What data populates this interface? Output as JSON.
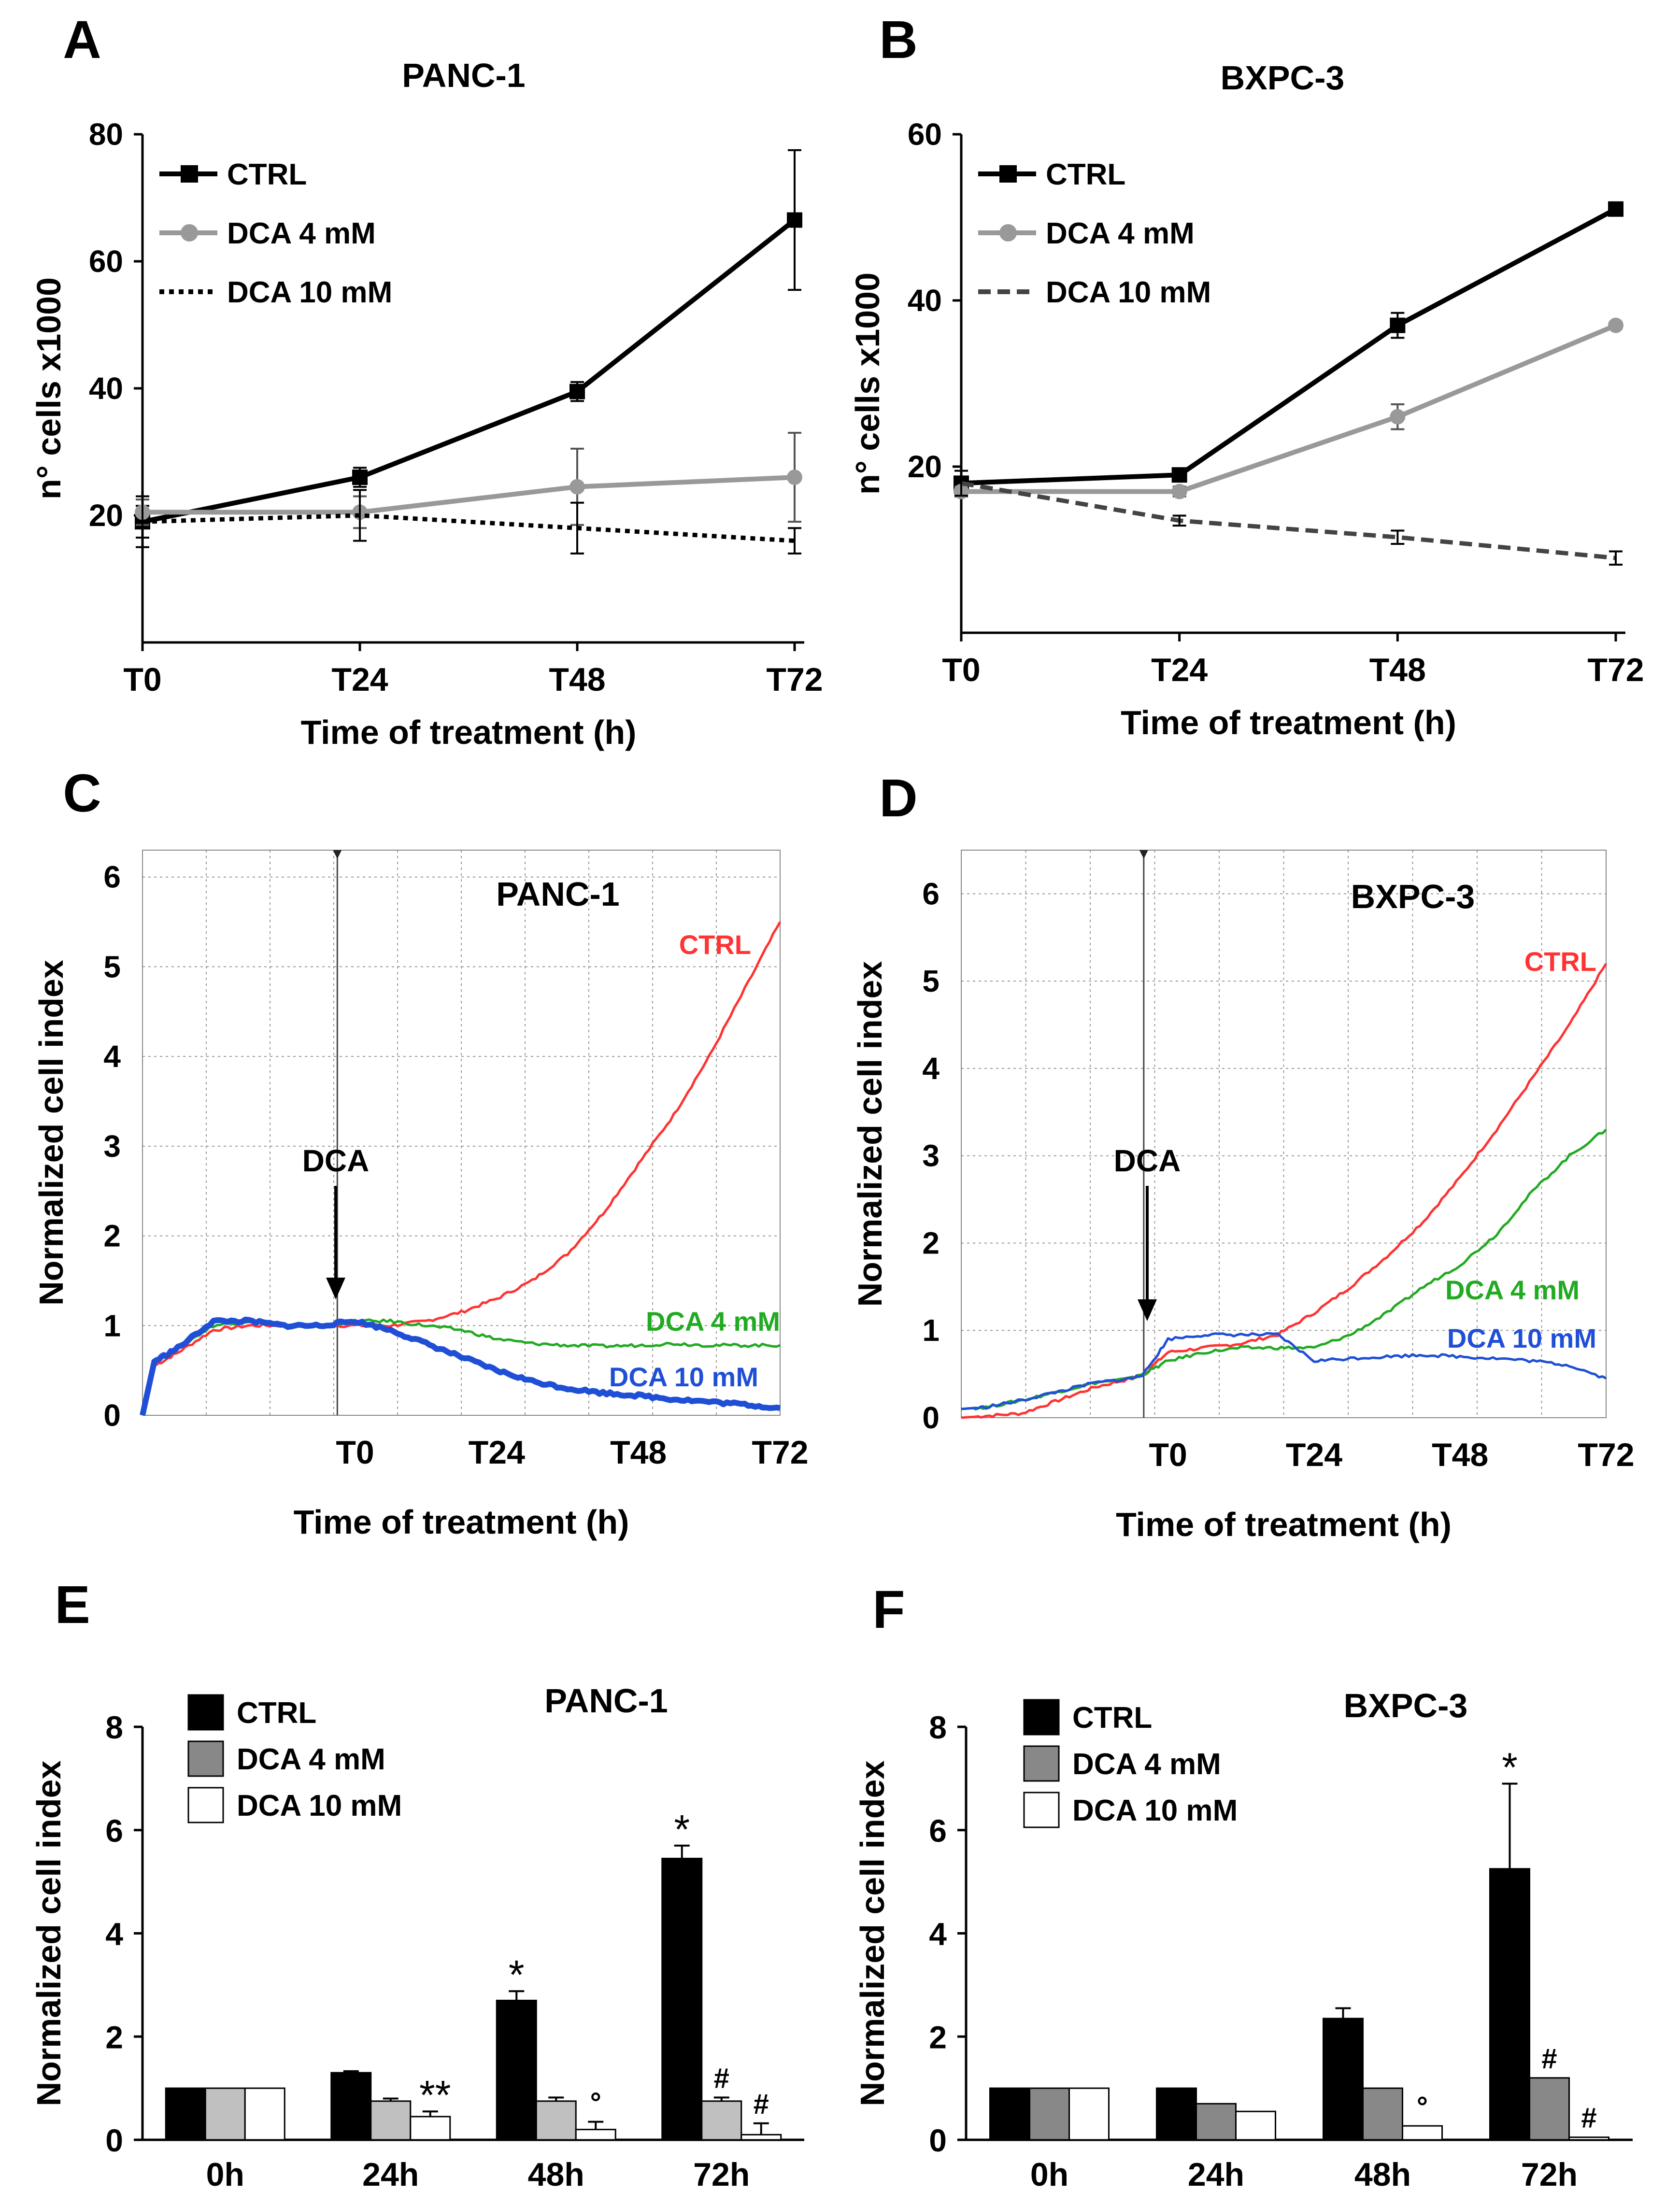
{
  "chart_data": [
    {
      "panel": "A",
      "type": "line",
      "title": "PANC-1",
      "xlabel": "Time of treatment (h)",
      "ylabel": "n° cells x1000",
      "categories": [
        "T0",
        "T24",
        "T48",
        "T72"
      ],
      "ylim": [
        0,
        80
      ],
      "yticks": [
        20,
        40,
        60,
        80
      ],
      "series": [
        {
          "name": "CTRL",
          "values": [
            19,
            26,
            39.5,
            66.5
          ],
          "errors": [
            2.5,
            1.5,
            1.5,
            11
          ],
          "color": "#000000",
          "style": "solid",
          "marker": "square"
        },
        {
          "name": "DCA 4 mM",
          "values": [
            20.5,
            20.5,
            24.5,
            26
          ],
          "errors": [
            2,
            2.5,
            6,
            7
          ],
          "color": "#999999",
          "style": "solid",
          "marker": "circle"
        },
        {
          "name": "DCA 10 mM",
          "values": [
            19,
            20,
            18,
            16
          ],
          "errors": [
            4,
            4,
            4,
            2
          ],
          "color": "#000000",
          "style": "dotted",
          "marker": "none"
        }
      ]
    },
    {
      "panel": "B",
      "type": "line",
      "title": "BXPC-3",
      "xlabel": "Time of treatment (h)",
      "ylabel": "n° cells x1000",
      "categories": [
        "T0",
        "T24",
        "T48",
        "T72"
      ],
      "ylim": [
        0,
        60
      ],
      "yticks": [
        20,
        40,
        60
      ],
      "series": [
        {
          "name": "CTRL",
          "values": [
            18,
            19,
            37,
            51
          ],
          "errors": [
            0.6,
            0.6,
            1.5,
            0.4
          ],
          "color": "#000000",
          "style": "solid",
          "marker": "square"
        },
        {
          "name": "DCA 4 mM",
          "values": [
            17,
            17,
            26,
            37
          ],
          "errors": [
            0.6,
            0.6,
            1.5,
            0.4
          ],
          "color": "#999999",
          "style": "solid",
          "marker": "circle"
        },
        {
          "name": "DCA 10 mM",
          "values": [
            18,
            13.5,
            11.5,
            9
          ],
          "errors": [
            1.5,
            0.6,
            0.8,
            0.8
          ],
          "color": "#444444",
          "style": "dashed",
          "marker": "none"
        }
      ]
    },
    {
      "panel": "C",
      "type": "line",
      "title": "PANC-1",
      "xlabel": "Time of treatment (h)",
      "ylabel": "Normalized cell index",
      "x_ticks": [
        {
          "label": "T0",
          "x": 0
        },
        {
          "label": "T24",
          "x": 24
        },
        {
          "label": "T48",
          "x": 48
        },
        {
          "label": "T72",
          "x": 72
        }
      ],
      "xlim": [
        -36,
        72
      ],
      "ylim": [
        0,
        6.3
      ],
      "yticks": [
        0,
        1,
        2,
        3,
        4,
        5,
        6
      ],
      "treatment_x": -3,
      "annotation": "DCA",
      "series": [
        {
          "name": "CTRL",
          "color": "#ff3333",
          "x": [
            -36,
            -34,
            -30,
            -24,
            -18,
            -12,
            -6,
            0,
            6,
            12,
            18,
            24,
            30,
            36,
            42,
            48,
            54,
            60,
            66,
            72
          ],
          "y": [
            0,
            0.55,
            0.7,
            0.95,
            1.0,
            1.0,
            1.0,
            1.0,
            1.0,
            1.05,
            1.15,
            1.3,
            1.5,
            1.8,
            2.25,
            2.8,
            3.35,
            4.0,
            4.75,
            5.5
          ]
        },
        {
          "name": "DCA 4 mM",
          "color": "#22aa22",
          "x": [
            -36,
            -34,
            -30,
            -24,
            -18,
            -12,
            -6,
            0,
            6,
            12,
            18,
            24,
            30,
            36,
            42,
            48,
            54,
            60,
            66,
            72
          ],
          "y": [
            0,
            0.6,
            0.75,
            1.0,
            1.05,
            1.0,
            1.0,
            1.05,
            1.05,
            1.0,
            0.95,
            0.85,
            0.8,
            0.78,
            0.77,
            0.78,
            0.8,
            0.78,
            0.78,
            0.78
          ]
        },
        {
          "name": "DCA 10 mM",
          "color": "#1f4fd6",
          "x": [
            -36,
            -34,
            -30,
            -24,
            -18,
            -12,
            -6,
            0,
            6,
            12,
            18,
            24,
            30,
            36,
            42,
            48,
            54,
            60,
            66,
            72
          ],
          "y": [
            0,
            0.6,
            0.75,
            1.05,
            1.05,
            1.0,
            1.0,
            1.05,
            0.95,
            0.8,
            0.65,
            0.5,
            0.38,
            0.3,
            0.25,
            0.22,
            0.18,
            0.15,
            0.12,
            0.08
          ]
        }
      ],
      "labels": [
        {
          "text": "CTRL",
          "color": "#ff3333",
          "series": "CTRL"
        },
        {
          "text": "DCA 4 mM",
          "color": "#22aa22",
          "series": "DCA 4 mM"
        },
        {
          "text": "DCA 10 mM",
          "color": "#1f4fd6",
          "series": "DCA 10 mM"
        }
      ]
    },
    {
      "panel": "D",
      "type": "line",
      "title": "BXPC-3",
      "xlabel": "Time of treatment (h)",
      "ylabel": "Normalized cell index",
      "x_ticks": [
        {
          "label": "T0",
          "x": 0
        },
        {
          "label": "T24",
          "x": 24
        },
        {
          "label": "T48",
          "x": 48
        },
        {
          "label": "T72",
          "x": 72
        }
      ],
      "xlim": [
        -34,
        72
      ],
      "ylim": [
        0,
        6.5
      ],
      "yticks": [
        0,
        1,
        2,
        3,
        4,
        5,
        6
      ],
      "treatment_x": -4,
      "annotation": "DCA",
      "series": [
        {
          "name": "CTRL",
          "color": "#ff3333",
          "x": [
            -34,
            -30,
            -24,
            -18,
            -12,
            -6,
            -4,
            0,
            6,
            12,
            18,
            24,
            30,
            36,
            42,
            48,
            54,
            60,
            66,
            72
          ],
          "y": [
            0,
            0.02,
            0.05,
            0.2,
            0.35,
            0.45,
            0.5,
            0.75,
            0.8,
            0.85,
            0.95,
            1.2,
            1.5,
            1.85,
            2.25,
            2.75,
            3.3,
            3.9,
            4.5,
            5.2
          ]
        },
        {
          "name": "DCA 4 mM",
          "color": "#22aa22",
          "x": [
            -34,
            -30,
            -24,
            -18,
            -12,
            -6,
            -4,
            0,
            6,
            12,
            18,
            24,
            30,
            36,
            42,
            48,
            54,
            60,
            66,
            72
          ],
          "y": [
            0.1,
            0.12,
            0.2,
            0.3,
            0.4,
            0.45,
            0.5,
            0.65,
            0.75,
            0.8,
            0.8,
            0.8,
            0.95,
            1.2,
            1.5,
            1.75,
            2.1,
            2.6,
            3.0,
            3.3
          ]
        },
        {
          "name": "DCA 10 mM",
          "color": "#1f4fd6",
          "x": [
            -34,
            -30,
            -24,
            -18,
            -12,
            -6,
            -4,
            0,
            6,
            12,
            18,
            24,
            30,
            36,
            42,
            48,
            54,
            60,
            66,
            72
          ],
          "y": [
            0.1,
            0.12,
            0.2,
            0.3,
            0.4,
            0.45,
            0.5,
            0.9,
            0.95,
            0.95,
            0.95,
            0.65,
            0.68,
            0.7,
            0.72,
            0.7,
            0.68,
            0.65,
            0.6,
            0.45
          ]
        }
      ],
      "labels": [
        {
          "text": "CTRL",
          "color": "#ff3333",
          "series": "CTRL"
        },
        {
          "text": "DCA 4 mM",
          "color": "#22aa22",
          "series": "DCA 4 mM"
        },
        {
          "text": "DCA 10 mM",
          "color": "#1f4fd6",
          "series": "DCA 10 mM"
        }
      ]
    },
    {
      "panel": "E",
      "type": "bar",
      "title": "PANC-1",
      "xlabel": "",
      "ylabel": "Normalized cell index",
      "categories": [
        "0h",
        "24h",
        "48h",
        "72h"
      ],
      "ylim": [
        0,
        8
      ],
      "yticks": [
        0,
        2,
        4,
        6,
        8
      ],
      "series": [
        {
          "name": "CTRL",
          "values": [
            1,
            1.3,
            2.7,
            5.45
          ],
          "errors": [
            0,
            0.03,
            0.18,
            0.25
          ],
          "color": "#000000"
        },
        {
          "name": "DCA 4 mM",
          "values": [
            1,
            0.75,
            0.75,
            0.75
          ],
          "errors": [
            0,
            0.05,
            0.07,
            0.07
          ],
          "color": "#c0c0c0"
        },
        {
          "name": "DCA 10 mM",
          "values": [
            1,
            0.45,
            0.2,
            0.1
          ],
          "errors": [
            0,
            0.1,
            0.15,
            0.22
          ],
          "color": "#ffffff"
        }
      ],
      "legend_swatches": [
        "#000000",
        "#888888",
        "#ffffff"
      ],
      "annotations": [
        {
          "category": "24h",
          "series": "DCA 10 mM",
          "text": "**"
        },
        {
          "category": "48h",
          "series": "CTRL",
          "text": "*"
        },
        {
          "category": "48h",
          "series": "DCA 10 mM",
          "text": "°"
        },
        {
          "category": "72h",
          "series": "CTRL",
          "text": "*"
        },
        {
          "category": "72h",
          "series": "DCA 4 mM",
          "text": "#"
        },
        {
          "category": "72h",
          "series": "DCA 10 mM",
          "text": "#"
        }
      ]
    },
    {
      "panel": "F",
      "type": "bar",
      "title": "BXPC-3",
      "xlabel": "",
      "ylabel": "Normalized cell index",
      "categories": [
        "0h",
        "24h",
        "48h",
        "72h"
      ],
      "ylim": [
        0,
        8
      ],
      "yticks": [
        0,
        2,
        4,
        6,
        8
      ],
      "series": [
        {
          "name": "CTRL",
          "values": [
            1,
            1,
            2.35,
            5.25
          ],
          "errors": [
            0,
            0,
            0.2,
            1.65
          ],
          "color": "#000000"
        },
        {
          "name": "DCA 4 mM",
          "values": [
            1,
            0.7,
            1,
            1.2
          ],
          "errors": [
            0,
            0,
            0,
            0
          ],
          "color": "#888888"
        },
        {
          "name": "DCA 10 mM",
          "values": [
            1,
            0.55,
            0.27,
            0.05
          ],
          "errors": [
            0,
            0,
            0,
            0
          ],
          "color": "#ffffff"
        }
      ],
      "legend_swatches": [
        "#000000",
        "#888888",
        "#ffffff"
      ],
      "annotations": [
        {
          "category": "48h",
          "series": "DCA 10 mM",
          "text": "°"
        },
        {
          "category": "72h",
          "series": "CTRL",
          "text": "*"
        },
        {
          "category": "72h",
          "series": "DCA 4 mM",
          "text": "#"
        },
        {
          "category": "72h",
          "series": "DCA 10 mM",
          "text": "#"
        }
      ]
    }
  ]
}
